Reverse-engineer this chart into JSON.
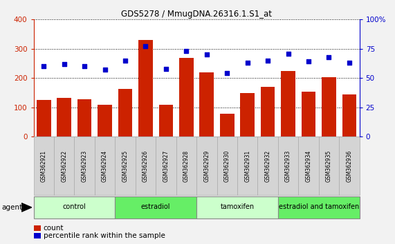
{
  "title": "GDS5278 / MmugDNA.26316.1.S1_at",
  "samples": [
    "GSM362921",
    "GSM362922",
    "GSM362923",
    "GSM362924",
    "GSM362925",
    "GSM362926",
    "GSM362927",
    "GSM362928",
    "GSM362929",
    "GSM362930",
    "GSM362931",
    "GSM362932",
    "GSM362933",
    "GSM362934",
    "GSM362935",
    "GSM362936"
  ],
  "counts": [
    125,
    132,
    127,
    110,
    163,
    330,
    108,
    270,
    220,
    78,
    150,
    170,
    225,
    153,
    202,
    145
  ],
  "percentile_ranks": [
    60,
    62,
    60,
    57,
    65,
    77,
    58,
    73,
    70,
    54,
    63,
    65,
    71,
    64,
    68,
    63
  ],
  "bar_color": "#cc2200",
  "dot_color": "#0000cc",
  "ylim_left": [
    0,
    400
  ],
  "ylim_right": [
    0,
    100
  ],
  "yticks_left": [
    0,
    100,
    200,
    300,
    400
  ],
  "yticks_right": [
    0,
    25,
    50,
    75,
    100
  ],
  "ytick_labels_right": [
    "0",
    "25",
    "50",
    "75",
    "100%"
  ],
  "groups": [
    {
      "label": "control",
      "start": 0,
      "end": 3,
      "color": "#ccffcc"
    },
    {
      "label": "estradiol",
      "start": 4,
      "end": 7,
      "color": "#66ee66"
    },
    {
      "label": "tamoxifen",
      "start": 8,
      "end": 11,
      "color": "#ccffcc"
    },
    {
      "label": "estradiol and tamoxifen",
      "start": 12,
      "end": 15,
      "color": "#66ee66"
    }
  ],
  "agent_label": "agent",
  "legend_count_label": "count",
  "legend_percentile_label": "percentile rank within the sample",
  "plot_bg_color": "#ffffff",
  "fig_bg_color": "#f2f2f2",
  "tick_label_color_left": "#cc2200",
  "tick_label_color_right": "#0000cc",
  "sample_box_color": "#d4d4d4",
  "sample_box_edge": "#aaaaaa"
}
